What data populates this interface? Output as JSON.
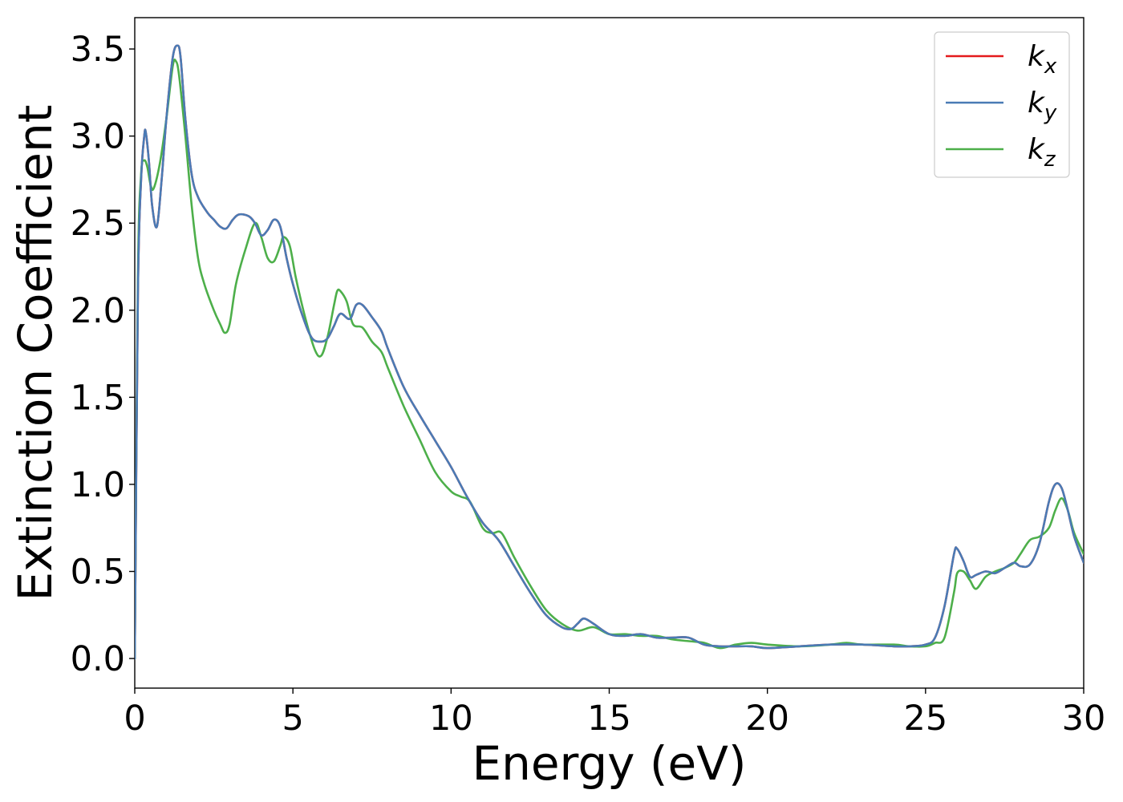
{
  "chart_data": {
    "type": "line",
    "title": "",
    "xlabel": "Energy (eV)",
    "ylabel": "Extinction Coefficient",
    "xlim": [
      0,
      30
    ],
    "ylim": [
      -0.17,
      3.68
    ],
    "xticks": [
      "0",
      "5",
      "10",
      "15",
      "20",
      "25",
      "30"
    ],
    "yticks": [
      "0.0",
      "0.5",
      "1.0",
      "1.5",
      "2.0",
      "2.5",
      "3.0",
      "3.5"
    ],
    "grid": false,
    "legend_position": "top-right",
    "series": [
      {
        "name": "k_x",
        "legend_base": "k",
        "legend_sub": "x",
        "color": "#e41a1c",
        "x": [
          0,
          0.1,
          0.2,
          0.3,
          0.35,
          0.45,
          0.55,
          0.7,
          0.85,
          1.0,
          1.2,
          1.35,
          1.45,
          1.6,
          1.8,
          2.0,
          2.3,
          2.5,
          2.7,
          2.9,
          3.1,
          3.3,
          3.6,
          3.8,
          4.0,
          4.2,
          4.4,
          4.6,
          4.8,
          5.0,
          5.3,
          5.6,
          5.9,
          6.1,
          6.3,
          6.5,
          6.8,
          7.0,
          7.2,
          7.5,
          7.8,
          8.0,
          8.5,
          9.0,
          9.5,
          10.0,
          10.5,
          11.0,
          11.5,
          12.0,
          12.5,
          13.0,
          13.5,
          13.8,
          14.0,
          14.2,
          14.5,
          15.0,
          15.5,
          16.0,
          16.5,
          17.0,
          17.5,
          18.0,
          18.5,
          19.0,
          19.5,
          20.0,
          21.0,
          22.0,
          23.0,
          24.0,
          24.5,
          25.0,
          25.3,
          25.6,
          25.9,
          26.0,
          26.2,
          26.4,
          26.6,
          26.9,
          27.2,
          27.5,
          27.8,
          28.0,
          28.3,
          28.6,
          28.9,
          29.1,
          29.3,
          29.5,
          29.7,
          30.0
        ],
        "y": [
          0.0,
          2.1,
          2.75,
          3.0,
          3.02,
          2.85,
          2.6,
          2.48,
          2.75,
          3.1,
          3.45,
          3.52,
          3.45,
          3.1,
          2.78,
          2.65,
          2.56,
          2.52,
          2.48,
          2.47,
          2.52,
          2.55,
          2.54,
          2.5,
          2.43,
          2.46,
          2.52,
          2.48,
          2.3,
          2.15,
          1.97,
          1.84,
          1.82,
          1.84,
          1.91,
          1.98,
          1.95,
          2.03,
          2.03,
          1.96,
          1.88,
          1.78,
          1.56,
          1.4,
          1.25,
          1.1,
          0.93,
          0.78,
          0.68,
          0.53,
          0.38,
          0.25,
          0.18,
          0.17,
          0.2,
          0.23,
          0.2,
          0.14,
          0.13,
          0.14,
          0.12,
          0.12,
          0.12,
          0.08,
          0.07,
          0.07,
          0.07,
          0.06,
          0.07,
          0.08,
          0.08,
          0.07,
          0.07,
          0.08,
          0.12,
          0.3,
          0.6,
          0.63,
          0.56,
          0.47,
          0.48,
          0.5,
          0.49,
          0.52,
          0.55,
          0.53,
          0.54,
          0.66,
          0.9,
          1.0,
          0.98,
          0.85,
          0.7,
          0.55
        ]
      },
      {
        "name": "k_y",
        "legend_base": "k",
        "legend_sub": "y",
        "color": "#4a7bb5",
        "x": [
          0,
          0.1,
          0.2,
          0.3,
          0.35,
          0.45,
          0.55,
          0.7,
          0.85,
          1.0,
          1.2,
          1.35,
          1.45,
          1.6,
          1.8,
          2.0,
          2.3,
          2.5,
          2.7,
          2.9,
          3.1,
          3.3,
          3.6,
          3.8,
          4.0,
          4.2,
          4.4,
          4.6,
          4.8,
          5.0,
          5.3,
          5.6,
          5.9,
          6.1,
          6.3,
          6.5,
          6.8,
          7.0,
          7.2,
          7.5,
          7.8,
          8.0,
          8.5,
          9.0,
          9.5,
          10.0,
          10.5,
          11.0,
          11.5,
          12.0,
          12.5,
          13.0,
          13.5,
          13.8,
          14.0,
          14.2,
          14.5,
          15.0,
          15.5,
          16.0,
          16.5,
          17.0,
          17.5,
          18.0,
          18.5,
          19.0,
          19.5,
          20.0,
          21.0,
          22.0,
          23.0,
          24.0,
          24.5,
          25.0,
          25.3,
          25.6,
          25.9,
          26.0,
          26.2,
          26.4,
          26.6,
          26.9,
          27.2,
          27.5,
          27.8,
          28.0,
          28.3,
          28.6,
          28.9,
          29.1,
          29.3,
          29.5,
          29.7,
          30.0
        ],
        "y": [
          0.0,
          2.1,
          2.75,
          3.0,
          3.02,
          2.85,
          2.6,
          2.48,
          2.75,
          3.1,
          3.45,
          3.52,
          3.45,
          3.1,
          2.78,
          2.65,
          2.56,
          2.52,
          2.48,
          2.47,
          2.52,
          2.55,
          2.54,
          2.5,
          2.43,
          2.46,
          2.52,
          2.48,
          2.3,
          2.15,
          1.97,
          1.84,
          1.82,
          1.84,
          1.91,
          1.98,
          1.95,
          2.03,
          2.03,
          1.96,
          1.88,
          1.78,
          1.56,
          1.4,
          1.25,
          1.1,
          0.93,
          0.78,
          0.68,
          0.53,
          0.38,
          0.25,
          0.18,
          0.17,
          0.2,
          0.23,
          0.2,
          0.14,
          0.13,
          0.14,
          0.12,
          0.12,
          0.12,
          0.08,
          0.07,
          0.07,
          0.07,
          0.06,
          0.07,
          0.08,
          0.08,
          0.07,
          0.07,
          0.08,
          0.12,
          0.3,
          0.6,
          0.63,
          0.56,
          0.47,
          0.48,
          0.5,
          0.49,
          0.52,
          0.55,
          0.53,
          0.54,
          0.66,
          0.9,
          1.0,
          0.98,
          0.85,
          0.7,
          0.55
        ]
      },
      {
        "name": "k_z",
        "legend_base": "k",
        "legend_sub": "z",
        "color": "#4daf4a",
        "x": [
          0,
          0.1,
          0.2,
          0.3,
          0.4,
          0.5,
          0.6,
          0.8,
          1.0,
          1.2,
          1.3,
          1.4,
          1.6,
          1.8,
          2.0,
          2.2,
          2.5,
          2.7,
          2.85,
          3.0,
          3.2,
          3.5,
          3.8,
          4.0,
          4.2,
          4.4,
          4.6,
          4.7,
          4.9,
          5.1,
          5.4,
          5.7,
          5.9,
          6.1,
          6.3,
          6.4,
          6.5,
          6.7,
          6.9,
          7.2,
          7.5,
          7.8,
          8.0,
          8.5,
          9.0,
          9.5,
          10.0,
          10.3,
          10.6,
          11.0,
          11.3,
          11.6,
          12.0,
          12.5,
          13.0,
          13.5,
          14.0,
          14.5,
          15.0,
          15.5,
          16.0,
          16.5,
          17.0,
          17.5,
          18.0,
          18.5,
          19.0,
          19.5,
          20.0,
          21.0,
          22.0,
          22.5,
          23.0,
          24.0,
          24.5,
          25.0,
          25.3,
          25.6,
          25.9,
          26.0,
          26.2,
          26.4,
          26.6,
          26.9,
          27.2,
          27.5,
          27.8,
          28.0,
          28.3,
          28.6,
          28.9,
          29.1,
          29.3,
          29.5,
          29.7,
          30.0
        ],
        "y": [
          0.0,
          2.2,
          2.78,
          2.86,
          2.82,
          2.72,
          2.7,
          2.85,
          3.1,
          3.4,
          3.43,
          3.35,
          3.0,
          2.6,
          2.3,
          2.15,
          2.0,
          1.92,
          1.87,
          1.92,
          2.15,
          2.35,
          2.5,
          2.42,
          2.3,
          2.28,
          2.37,
          2.42,
          2.37,
          2.18,
          1.95,
          1.77,
          1.74,
          1.85,
          2.03,
          2.11,
          2.11,
          2.05,
          1.92,
          1.9,
          1.82,
          1.76,
          1.67,
          1.45,
          1.26,
          1.07,
          0.96,
          0.93,
          0.9,
          0.75,
          0.72,
          0.72,
          0.58,
          0.42,
          0.28,
          0.2,
          0.16,
          0.18,
          0.14,
          0.14,
          0.13,
          0.13,
          0.11,
          0.1,
          0.09,
          0.06,
          0.08,
          0.09,
          0.08,
          0.07,
          0.08,
          0.09,
          0.08,
          0.08,
          0.07,
          0.07,
          0.09,
          0.12,
          0.38,
          0.49,
          0.5,
          0.45,
          0.4,
          0.47,
          0.5,
          0.52,
          0.55,
          0.6,
          0.68,
          0.7,
          0.75,
          0.85,
          0.92,
          0.85,
          0.72,
          0.6
        ]
      }
    ]
  }
}
